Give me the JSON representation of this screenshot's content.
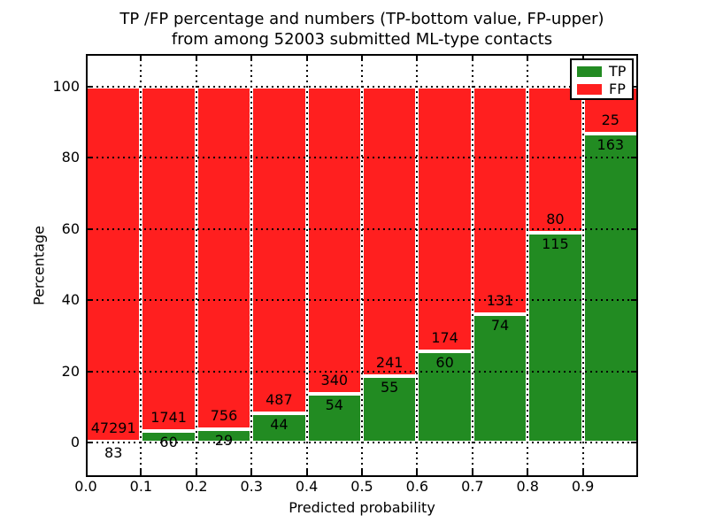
{
  "title": {
    "line1": "TP /FP percentage and numbers (TP-bottom value, FP-upper)",
    "line2": "from among 52003 submitted ML-type contacts"
  },
  "chart_data": {
    "type": "bar",
    "stacked": true,
    "normalized": "percent-of-bin",
    "title": "TP /FP percentage and numbers (TP-bottom value, FP-upper)\nfrom among 52003 submitted ML-type contacts",
    "xlabel": "Predicted probability",
    "ylabel": "Percentage",
    "total_contacts": 52003,
    "categories": [
      "0.0",
      "0.1",
      "0.2",
      "0.3",
      "0.4",
      "0.5",
      "0.6",
      "0.7",
      "0.8",
      "0.9"
    ],
    "bin_width": 0.1,
    "series": [
      {
        "name": "TP",
        "color": "#228b22",
        "values": [
          83,
          60,
          29,
          44,
          54,
          55,
          60,
          74,
          115,
          163
        ]
      },
      {
        "name": "FP",
        "color": "#ff1f1f",
        "values": [
          47291,
          1741,
          756,
          487,
          340,
          241,
          174,
          131,
          80,
          25
        ]
      }
    ],
    "xticks": [
      "0.0",
      "0.1",
      "0.2",
      "0.3",
      "0.4",
      "0.5",
      "0.6",
      "0.7",
      "0.8",
      "0.9"
    ],
    "yticks": [
      0,
      20,
      40,
      60,
      80,
      100
    ],
    "xlim": [
      0.0,
      1.0
    ],
    "ylim": [
      -10,
      110
    ],
    "grid": "dotted-black",
    "bar_edge_color": "#ffffff",
    "legend": {
      "position": "upper-right",
      "entries": [
        "TP",
        "FP"
      ]
    }
  }
}
